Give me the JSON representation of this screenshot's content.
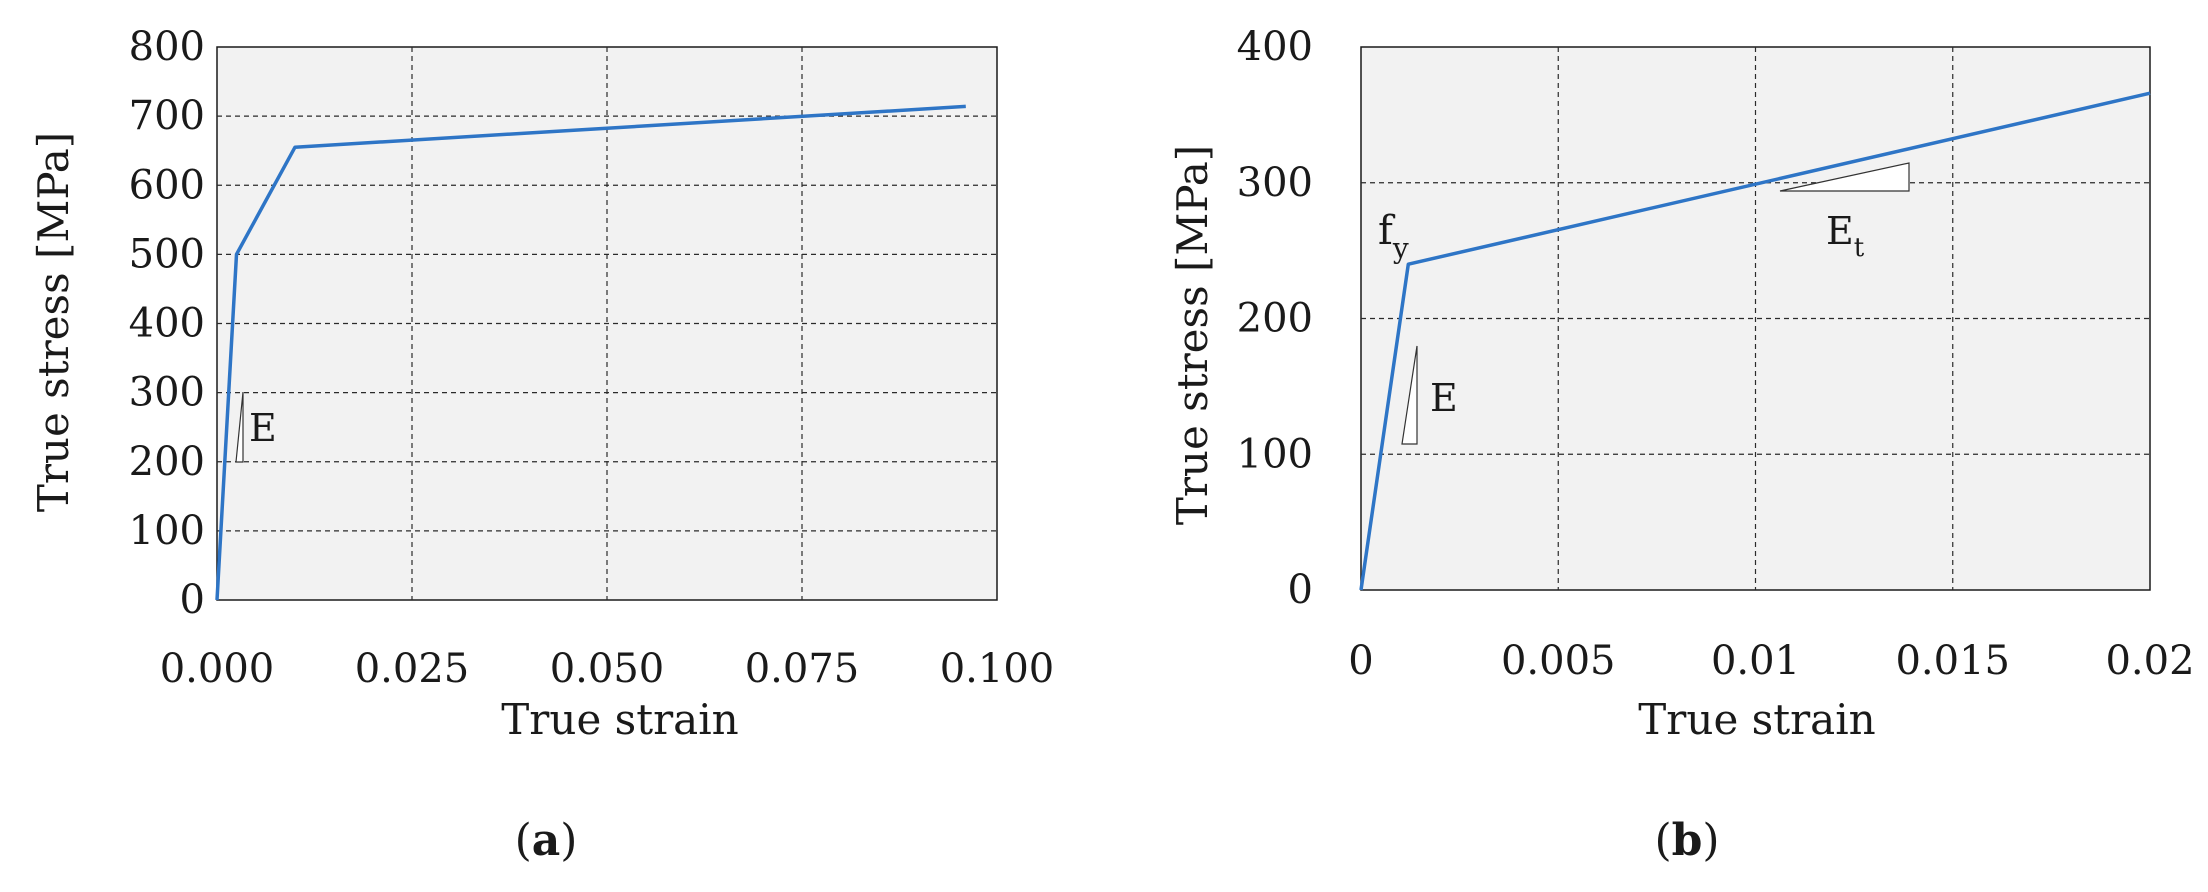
{
  "chart_data": [
    {
      "type": "line",
      "panel_label": "a",
      "xlabel": "True strain",
      "ylabel": "True stress [MPa]",
      "xlim": [
        0,
        0.1
      ],
      "ylim": [
        0,
        800
      ],
      "x_ticks": [
        "0.000",
        "0.025",
        "0.050",
        "0.075",
        "0.100"
      ],
      "y_ticks": [
        "0",
        "100",
        "200",
        "300",
        "400",
        "500",
        "600",
        "700",
        "800"
      ],
      "grid": true,
      "series": [
        {
          "color": "#2e75c6",
          "x": [
            0,
            0.0025,
            0.01,
            0.096
          ],
          "y": [
            0,
            500,
            655,
            714
          ]
        }
      ],
      "annotations": [
        {
          "text": "E",
          "kind": "slope-triangle",
          "x": [
            0.0027,
            0.0032
          ],
          "y": [
            200,
            300
          ]
        }
      ]
    },
    {
      "type": "line",
      "panel_label": "b",
      "xlabel": "True strain",
      "ylabel": "True stress [MPa]",
      "xlim": [
        0,
        0.02
      ],
      "ylim": [
        0,
        400
      ],
      "x_ticks": [
        "0",
        "0.005",
        "0.01",
        "0.015",
        "0.02"
      ],
      "y_ticks": [
        "0",
        "100",
        "200",
        "300",
        "400"
      ],
      "grid": true,
      "series": [
        {
          "color": "#2e75c6",
          "x": [
            0,
            0.0012,
            0.02
          ],
          "y": [
            0,
            240,
            366
          ]
        }
      ],
      "annotations": [
        {
          "text": "f",
          "sub": "y",
          "kind": "label"
        },
        {
          "text": "E",
          "kind": "slope-triangle",
          "x": [
            0.001,
            0.0014
          ],
          "y": [
            110,
            180
          ]
        },
        {
          "text": "E",
          "sub": "t",
          "kind": "slope-triangle",
          "x": [
            0.0105,
            0.0139
          ],
          "y": [
            295,
            315
          ]
        }
      ]
    }
  ]
}
